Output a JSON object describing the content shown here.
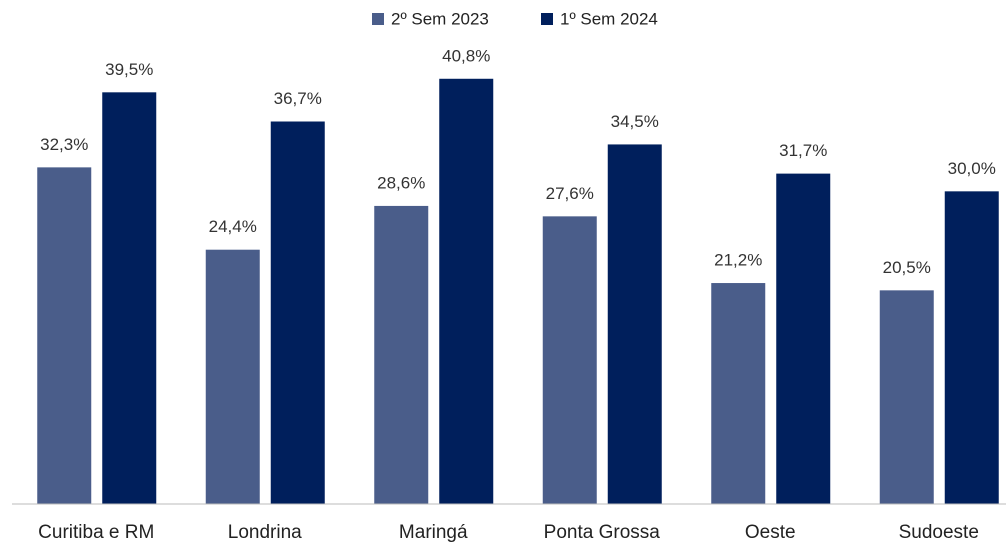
{
  "chart_data": {
    "type": "bar",
    "categories": [
      "Curitiba e RM",
      "Londrina",
      "Maringá",
      "Ponta Grossa",
      "Oeste",
      "Sudoeste"
    ],
    "series": [
      {
        "name": "2º Sem 2023",
        "color": "#4a5d8a",
        "values": [
          32.3,
          24.4,
          28.6,
          27.6,
          21.2,
          20.5
        ],
        "value_labels": [
          "32,3%",
          "24,4%",
          "28,6%",
          "27,6%",
          "21,2%",
          "20,5%"
        ]
      },
      {
        "name": "1º Sem 2024",
        "color": "#001f5c",
        "values": [
          39.5,
          36.7,
          40.8,
          34.5,
          31.7,
          30.0
        ],
        "value_labels": [
          "39,5%",
          "36,7%",
          "40,8%",
          "34,5%",
          "31,7%",
          "30,0%"
        ]
      }
    ],
    "ylim": [
      0,
      45
    ],
    "legend": "top"
  }
}
